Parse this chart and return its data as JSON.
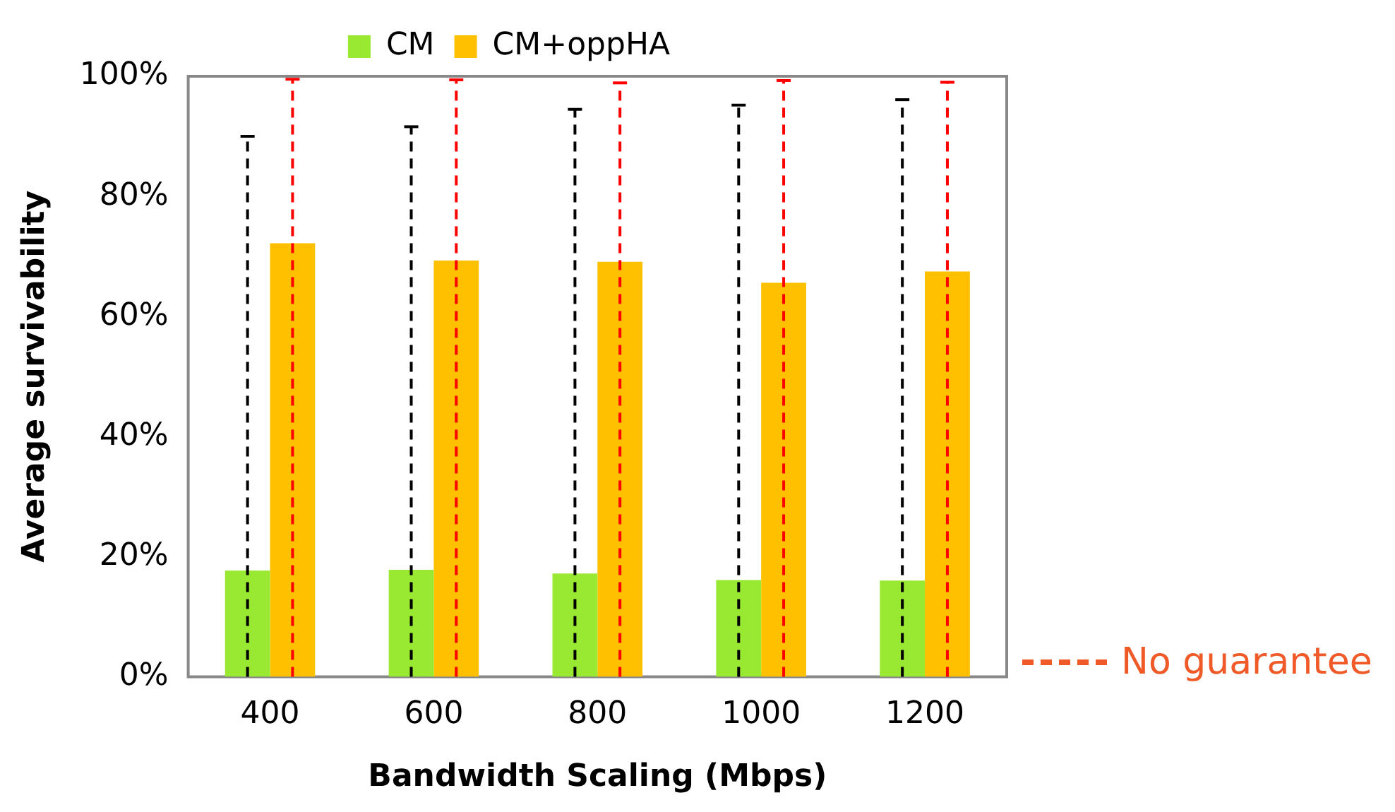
{
  "chart_data": {
    "type": "bar",
    "xlabel": "Bandwidth Scaling (Mbps)",
    "ylabel": "Average survivability",
    "categories": [
      "400",
      "600",
      "800",
      "1000",
      "1200"
    ],
    "series": [
      {
        "name": "CM",
        "color": "#99e832",
        "values": [
          17.7,
          17.8,
          17.2,
          16.1,
          16.0
        ],
        "errors": [
          [
            0,
            90
          ],
          [
            0,
            91.6
          ],
          [
            0,
            94.5
          ],
          [
            0,
            95.2
          ],
          [
            0,
            96.1
          ]
        ]
      },
      {
        "name": "CM+oppHA",
        "color": "#ffc000",
        "values": [
          72.2,
          69.3,
          69.1,
          65.6,
          67.5
        ],
        "errors": [
          [
            0,
            99.5
          ],
          [
            0,
            99.4
          ],
          [
            0,
            98.9
          ],
          [
            0,
            99.3
          ],
          [
            0,
            99
          ]
        ]
      }
    ],
    "ylim": [
      0,
      100
    ],
    "yticks": [
      {
        "value": 0,
        "label": "0%"
      },
      {
        "value": 20,
        "label": "20%"
      },
      {
        "value": 40,
        "label": "40%"
      },
      {
        "value": 60,
        "label": "60%"
      },
      {
        "value": 80,
        "label": "80%"
      },
      {
        "value": 100,
        "label": "100%"
      }
    ],
    "grid": false,
    "legend": "top",
    "annotations": [
      "No guarantee"
    ]
  }
}
